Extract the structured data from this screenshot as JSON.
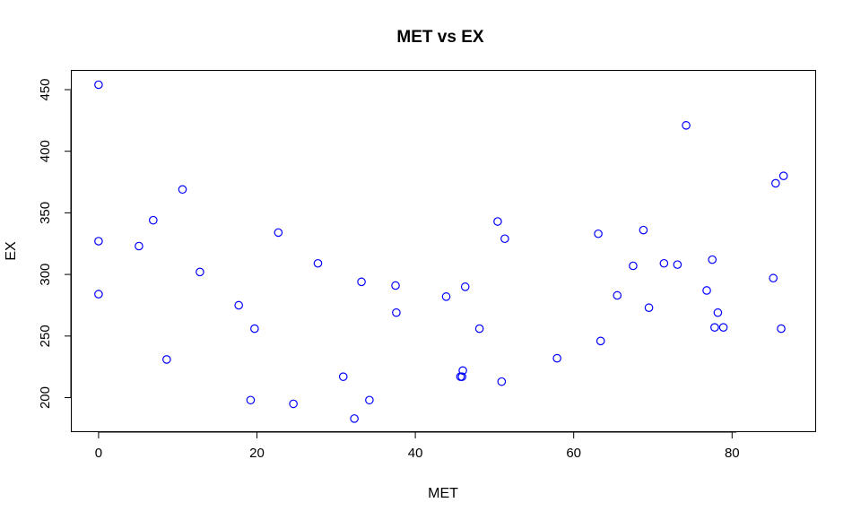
{
  "chart_data": {
    "type": "scatter",
    "title": "MET vs EX",
    "xlabel": "MET",
    "ylabel": "EX",
    "xlim": [
      -3.5,
      90.5
    ],
    "ylim": [
      172,
      466
    ],
    "xticks": [
      0,
      20,
      40,
      60,
      80
    ],
    "yticks": [
      200,
      250,
      300,
      350,
      400,
      450
    ],
    "grid": false,
    "legend": "none",
    "point_color": "#0000ff",
    "series": [
      {
        "x": [
          0,
          0,
          0,
          5.1,
          6.9,
          8.6,
          10.6,
          12.8,
          17.7,
          19.2,
          19.7,
          22.7,
          24.6,
          27.7,
          30.9,
          32.3,
          33.2,
          34.2,
          37.5,
          37.6,
          43.9,
          45.7,
          45.9,
          46.0,
          46.3,
          48.1,
          50.4,
          50.9,
          51.3,
          57.9,
          63.1,
          63.4,
          65.5,
          67.5,
          68.8,
          69.5,
          71.4,
          73.1,
          74.2,
          76.8,
          77.5,
          77.8,
          78.2,
          78.9,
          85.2,
          85.5,
          86.2,
          86.5
        ],
        "y": [
          454,
          327,
          284,
          323,
          344,
          231,
          369,
          302,
          275,
          198,
          256,
          334,
          195,
          309,
          217,
          183,
          294,
          198,
          291,
          269,
          282,
          217,
          217,
          222,
          290,
          256,
          343,
          213,
          329,
          232,
          333,
          246,
          283,
          307,
          336,
          273,
          309,
          308,
          421,
          287,
          312,
          257,
          269,
          257,
          297,
          374,
          256,
          380
        ]
      }
    ]
  }
}
